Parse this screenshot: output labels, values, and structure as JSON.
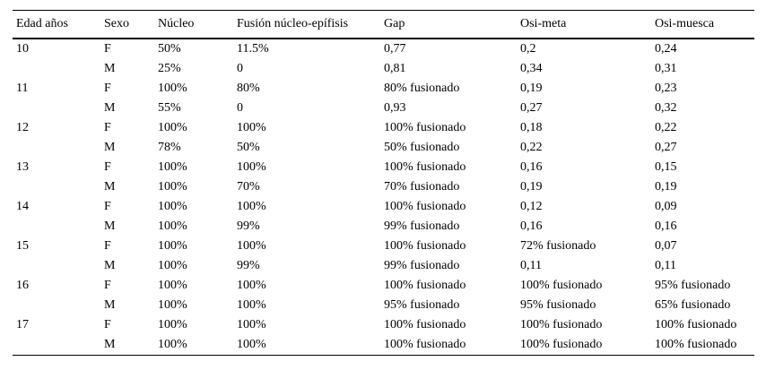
{
  "colors": {
    "background": "#ffffff",
    "text": "#000000",
    "rule": "#000000"
  },
  "table": {
    "columns": [
      "Edad años",
      "Sexo",
      "Núcleo",
      "Fusión núcleo-epífisis",
      "Gap",
      "Osi-meta",
      "Osi-muesca"
    ],
    "rows": [
      [
        "10",
        "F",
        "50%",
        "11.5%",
        "0,77",
        "0,2",
        "0,24"
      ],
      [
        "",
        "M",
        "25%",
        "0",
        "0,81",
        "0,34",
        "0,31"
      ],
      [
        "11",
        "F",
        "100%",
        "80%",
        "80% fusionado",
        "0,19",
        "0,23"
      ],
      [
        "",
        "M",
        "55%",
        "0",
        "0,93",
        "0,27",
        "0,32"
      ],
      [
        "12",
        "F",
        "100%",
        "100%",
        "100% fusionado",
        "0,18",
        "0,22"
      ],
      [
        "",
        "M",
        "78%",
        "50%",
        "50% fusionado",
        "0,22",
        "0,27"
      ],
      [
        "13",
        "F",
        "100%",
        "100%",
        "100% fusionado",
        "0,16",
        "0,15"
      ],
      [
        "",
        "M",
        "100%",
        "70%",
        "70% fusionado",
        "0,19",
        "0,19"
      ],
      [
        "14",
        "F",
        "100%",
        "100%",
        "100% fusionado",
        "0,12",
        "0,09"
      ],
      [
        "",
        "M",
        "100%",
        "99%",
        "99% fusionado",
        "0,16",
        "0,16"
      ],
      [
        "15",
        "F",
        "100%",
        "100%",
        "100% fusionado",
        "72% fusionado",
        "0,07"
      ],
      [
        "",
        "M",
        "100%",
        "99%",
        "99% fusionado",
        "0,11",
        "0,11"
      ],
      [
        "16",
        "F",
        "100%",
        "100%",
        "100% fusionado",
        "100% fusionado",
        "95% fusionado"
      ],
      [
        "",
        "M",
        "100%",
        "100%",
        "95% fusionado",
        "95% fusionado",
        "65% fusionado"
      ],
      [
        "17",
        "F",
        "100%",
        "100%",
        "100% fusionado",
        "100% fusionado",
        "100% fusionado"
      ],
      [
        "",
        "M",
        "100%",
        "100%",
        "100% fusionado",
        "100% fusionado",
        "100% fusionado"
      ]
    ]
  },
  "chart_data": {
    "type": "table",
    "title": "",
    "columns": [
      "Edad años",
      "Sexo",
      "Núcleo",
      "Fusión núcleo-epífisis",
      "Gap",
      "Osi-meta",
      "Osi-muesca"
    ],
    "rows": [
      [
        "10",
        "F",
        "50%",
        "11.5%",
        "0,77",
        "0,2",
        "0,24"
      ],
      [
        "10",
        "M",
        "25%",
        "0",
        "0,81",
        "0,34",
        "0,31"
      ],
      [
        "11",
        "F",
        "100%",
        "80%",
        "80% fusionado",
        "0,19",
        "0,23"
      ],
      [
        "11",
        "M",
        "55%",
        "0",
        "0,93",
        "0,27",
        "0,32"
      ],
      [
        "12",
        "F",
        "100%",
        "100%",
        "100% fusionado",
        "0,18",
        "0,22"
      ],
      [
        "12",
        "M",
        "78%",
        "50%",
        "50% fusionado",
        "0,22",
        "0,27"
      ],
      [
        "13",
        "F",
        "100%",
        "100%",
        "100% fusionado",
        "0,16",
        "0,15"
      ],
      [
        "13",
        "M",
        "100%",
        "70%",
        "70% fusionado",
        "0,19",
        "0,19"
      ],
      [
        "14",
        "F",
        "100%",
        "100%",
        "100% fusionado",
        "0,12",
        "0,09"
      ],
      [
        "14",
        "M",
        "100%",
        "99%",
        "99% fusionado",
        "0,16",
        "0,16"
      ],
      [
        "15",
        "F",
        "100%",
        "100%",
        "100% fusionado",
        "72% fusionado",
        "0,07"
      ],
      [
        "15",
        "M",
        "100%",
        "99%",
        "99% fusionado",
        "0,11",
        "0,11"
      ],
      [
        "16",
        "F",
        "100%",
        "100%",
        "100% fusionado",
        "100% fusionado",
        "95% fusionado"
      ],
      [
        "16",
        "M",
        "100%",
        "100%",
        "95% fusionado",
        "95% fusionado",
        "65% fusionado"
      ],
      [
        "17",
        "F",
        "100%",
        "100%",
        "100% fusionado",
        "100% fusionado",
        "100% fusionado"
      ],
      [
        "17",
        "M",
        "100%",
        "100%",
        "100% fusionado",
        "100% fusionado",
        "100% fusionado"
      ]
    ]
  }
}
